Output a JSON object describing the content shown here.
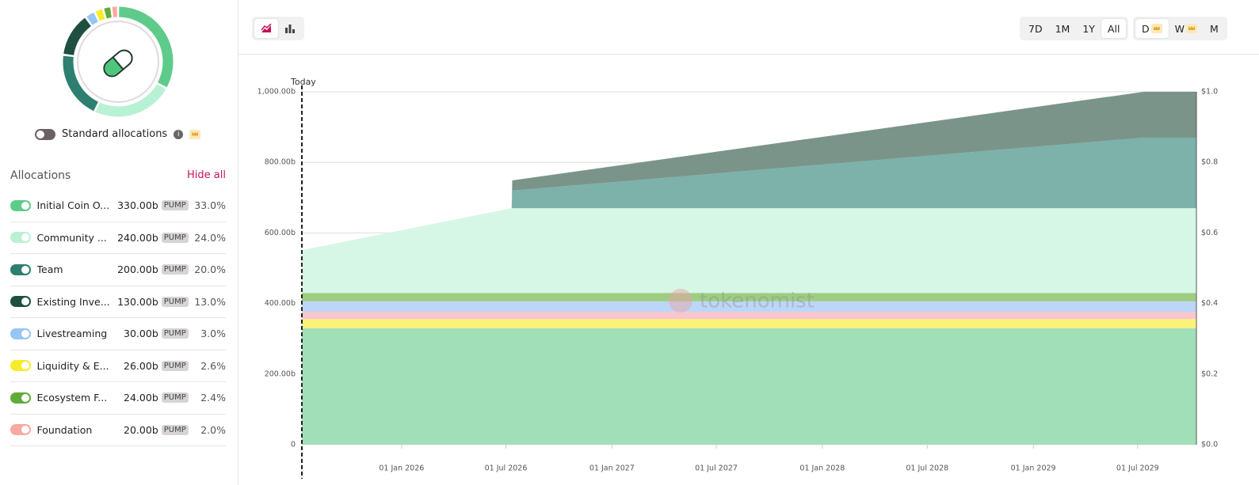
{
  "sidebar": {
    "toggle_label": "Standard allocations",
    "heading": "Allocations",
    "hide_all": "Hide all",
    "allocations": [
      {
        "name": "Initial Coin O...",
        "amount": "330.00b",
        "token": "PUMP",
        "share": 33,
        "share_label": "33.0%",
        "color": "#5ecb8a"
      },
      {
        "name": "Community ...",
        "amount": "240.00b",
        "token": "PUMP",
        "share": 24,
        "share_label": "24.0%",
        "color": "#b9f1d5"
      },
      {
        "name": "Team",
        "amount": "200.00b",
        "token": "PUMP",
        "share": 20,
        "share_label": "20.0%",
        "color": "#2d7f70"
      },
      {
        "name": "Existing Inve...",
        "amount": "130.00b",
        "token": "PUMP",
        "share": 13,
        "share_label": "13.0%",
        "color": "#1f4f40"
      },
      {
        "name": "Livestreaming",
        "amount": "30.00b",
        "token": "PUMP",
        "share": 3,
        "share_label": "3.0%",
        "color": "#97c5f5"
      },
      {
        "name": "Liquidity & E...",
        "amount": "26.00b",
        "token": "PUMP",
        "share": 2.6,
        "share_label": "2.6%",
        "color": "#f7ec2a"
      },
      {
        "name": "Ecosystem F...",
        "amount": "24.00b",
        "token": "PUMP",
        "share": 2.4,
        "share_label": "2.4%",
        "color": "#5fab3b"
      },
      {
        "name": "Foundation",
        "amount": "20.00b",
        "token": "PUMP",
        "share": 2,
        "share_label": "2.0%",
        "color": "#f8a9a1"
      }
    ]
  },
  "toolbar": {
    "ranges": [
      "7D",
      "1M",
      "1Y",
      "All"
    ],
    "active_range": "All",
    "intervals": [
      {
        "label": "D",
        "premium": true
      },
      {
        "label": "W",
        "premium": true
      },
      {
        "label": "M",
        "premium": false
      }
    ],
    "active_interval": "D"
  },
  "chart_data": {
    "type": "stacked_area",
    "watermark": "tokenomist",
    "annotation": {
      "text": "Today",
      "x": "2025-07-12"
    },
    "x": [
      "2025-07-12",
      "2026-07-11",
      "2026-07-12",
      "2029-07-12",
      "2029-10-11"
    ],
    "xlim": [
      "2025-07-12",
      "2029-10-11"
    ],
    "xticks": [
      {
        "value": "2026-01-01",
        "label": "01 Jan 2026"
      },
      {
        "value": "2026-07-01",
        "label": "01 Jul 2026"
      },
      {
        "value": "2027-01-01",
        "label": "01 Jan 2027"
      },
      {
        "value": "2027-07-01",
        "label": "01 Jul 2027"
      },
      {
        "value": "2028-01-01",
        "label": "01 Jan 2028"
      },
      {
        "value": "2028-07-01",
        "label": "01 Jul 2028"
      },
      {
        "value": "2029-01-01",
        "label": "01 Jan 2029"
      },
      {
        "value": "2029-07-01",
        "label": "01 Jul 2029"
      }
    ],
    "ylim": [
      0,
      1000
    ],
    "yticks": [
      0,
      {
        "value": 200,
        "label": "200.00b"
      },
      {
        "value": 400,
        "label": "400.00b"
      },
      {
        "value": 600,
        "label": "600.00b"
      },
      {
        "value": 800,
        "label": "800.00b"
      },
      {
        "value": 1000,
        "label": "1,000.00b"
      }
    ],
    "y2lim": [
      0,
      1
    ],
    "y2ticks": [
      {
        "value": 0,
        "label": "$0.0"
      },
      {
        "value": 0.2,
        "label": "$0.2"
      },
      {
        "value": 0.4,
        "label": "$0.4"
      },
      {
        "value": 0.6,
        "label": "$0.6"
      },
      {
        "value": 0.8,
        "label": "$0.8"
      },
      {
        "value": 1,
        "label": "$1.0"
      }
    ],
    "grid": true,
    "series": [
      {
        "color": "#a1dfb8",
        "values": [
          330,
          330,
          330,
          330,
          330
        ]
      },
      {
        "color": "#fbf27a",
        "values": [
          26,
          26,
          26,
          26,
          26
        ]
      },
      {
        "color": "#f9c6cc",
        "values": [
          20,
          20,
          20,
          20,
          20
        ]
      },
      {
        "color": "#bcd6f8",
        "values": [
          30,
          30,
          30,
          30,
          30
        ]
      },
      {
        "color": "#9dcd83",
        "values": [
          24,
          24,
          24,
          24,
          24
        ]
      },
      {
        "color": "#d6f7e5",
        "values": [
          121,
          240,
          240,
          240,
          240
        ]
      },
      {
        "color": "#7cb2aa",
        "values": [
          0,
          0,
          50,
          200,
          200
        ]
      },
      {
        "color": "#7b9489",
        "values": [
          0,
          0,
          29,
          130,
          130
        ]
      }
    ]
  }
}
